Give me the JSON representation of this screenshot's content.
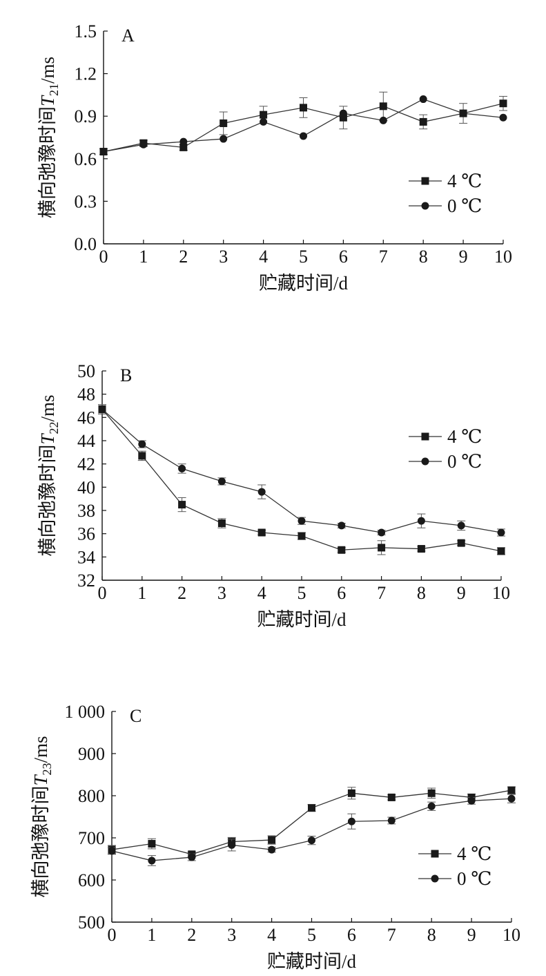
{
  "chart_data": [
    {
      "type": "line",
      "panel_label": "A",
      "xlabel": "贮藏时间/d",
      "ylabel_pre": "横向弛豫时间",
      "ylabel_var": "T",
      "ylabel_sub": "21",
      "ylabel_unit": "/ms",
      "xlim": [
        0,
        10
      ],
      "ylim": [
        0.0,
        1.5
      ],
      "x": [
        0,
        1,
        2,
        3,
        4,
        5,
        6,
        7,
        8,
        9,
        10
      ],
      "x_ticks": [
        "0",
        "1",
        "2",
        "3",
        "4",
        "5",
        "6",
        "7",
        "8",
        "9",
        "10"
      ],
      "y_ticks": [
        "0.0",
        "0.3",
        "0.6",
        "0.9",
        "1.2",
        "1.5"
      ],
      "y_tick_values": [
        0.0,
        0.3,
        0.6,
        0.9,
        1.2,
        1.5
      ],
      "legend_position": "right",
      "series": [
        {
          "name": "4 ℃",
          "marker": "square",
          "values": [
            0.65,
            0.71,
            0.68,
            0.85,
            0.91,
            0.96,
            0.89,
            0.97,
            0.86,
            0.92,
            0.99
          ],
          "errors": [
            0.02,
            0.02,
            0.02,
            0.08,
            0.06,
            0.07,
            0.08,
            0.1,
            0.05,
            0.07,
            0.05
          ]
        },
        {
          "name": "0 ℃",
          "marker": "circle",
          "values": [
            0.65,
            0.7,
            0.72,
            0.74,
            0.86,
            0.76,
            0.92,
            0.87,
            1.02,
            0.92,
            0.89
          ]
        }
      ]
    },
    {
      "type": "line",
      "panel_label": "B",
      "xlabel": "贮藏时间/d",
      "ylabel_pre": "横向弛豫时间",
      "ylabel_var": "T",
      "ylabel_sub": "22",
      "ylabel_unit": "/ms",
      "xlim": [
        0,
        10
      ],
      "ylim": [
        32,
        50
      ],
      "x": [
        0,
        1,
        2,
        3,
        4,
        5,
        6,
        7,
        8,
        9,
        10
      ],
      "x_ticks": [
        "0",
        "1",
        "2",
        "3",
        "4",
        "5",
        "6",
        "7",
        "8",
        "9",
        "10"
      ],
      "y_ticks": [
        "32",
        "34",
        "36",
        "38",
        "40",
        "42",
        "44",
        "46",
        "48",
        "50"
      ],
      "y_tick_values": [
        32,
        34,
        36,
        38,
        40,
        42,
        44,
        46,
        48,
        50
      ],
      "legend_position": "top-right",
      "series": [
        {
          "name": "4 ℃",
          "marker": "square",
          "values": [
            46.7,
            42.7,
            38.5,
            36.9,
            36.1,
            35.8,
            34.6,
            34.8,
            34.7,
            35.2,
            34.5
          ],
          "errors": [
            0.4,
            0.4,
            0.6,
            0.4,
            0.2,
            0.3,
            0.2,
            0.6,
            0.2,
            0.2,
            0.3
          ]
        },
        {
          "name": "0 ℃",
          "marker": "circle",
          "values": [
            46.7,
            43.7,
            41.6,
            40.5,
            39.6,
            37.1,
            36.7,
            36.1,
            37.1,
            36.7,
            36.1
          ],
          "errors": [
            0.4,
            0.3,
            0.4,
            0.3,
            0.6,
            0.3,
            0.2,
            0.2,
            0.6,
            0.4,
            0.3
          ]
        }
      ]
    },
    {
      "type": "line",
      "panel_label": "C",
      "xlabel": "贮藏时间/d",
      "ylabel_pre": "横向弛豫时间",
      "ylabel_var": "T",
      "ylabel_sub": "23",
      "ylabel_unit": "/ms",
      "xlim": [
        0,
        10
      ],
      "ylim": [
        500,
        1000
      ],
      "x": [
        0,
        1,
        2,
        3,
        4,
        5,
        6,
        7,
        8,
        9,
        10
      ],
      "x_ticks": [
        "0",
        "1",
        "2",
        "3",
        "4",
        "5",
        "6",
        "7",
        "8",
        "9",
        "10"
      ],
      "y_ticks": [
        "500",
        "600",
        "700",
        "800",
        "900",
        "1 000"
      ],
      "y_tick_values": [
        500,
        600,
        700,
        800,
        900,
        1000
      ],
      "legend_position": "right",
      "series": [
        {
          "name": "4 ℃",
          "marker": "square",
          "values": [
            672,
            686,
            661,
            691,
            695,
            771,
            806,
            796,
            806,
            796,
            813
          ],
          "errors": [
            10,
            12,
            6,
            10,
            10,
            8,
            14,
            6,
            12,
            8,
            8
          ]
        },
        {
          "name": "0 ℃",
          "marker": "circle",
          "values": [
            669,
            646,
            654,
            683,
            672,
            694,
            739,
            741,
            775,
            788,
            793
          ],
          "errors": [
            8,
            12,
            8,
            14,
            6,
            10,
            18,
            8,
            10,
            8,
            10
          ]
        }
      ]
    }
  ]
}
